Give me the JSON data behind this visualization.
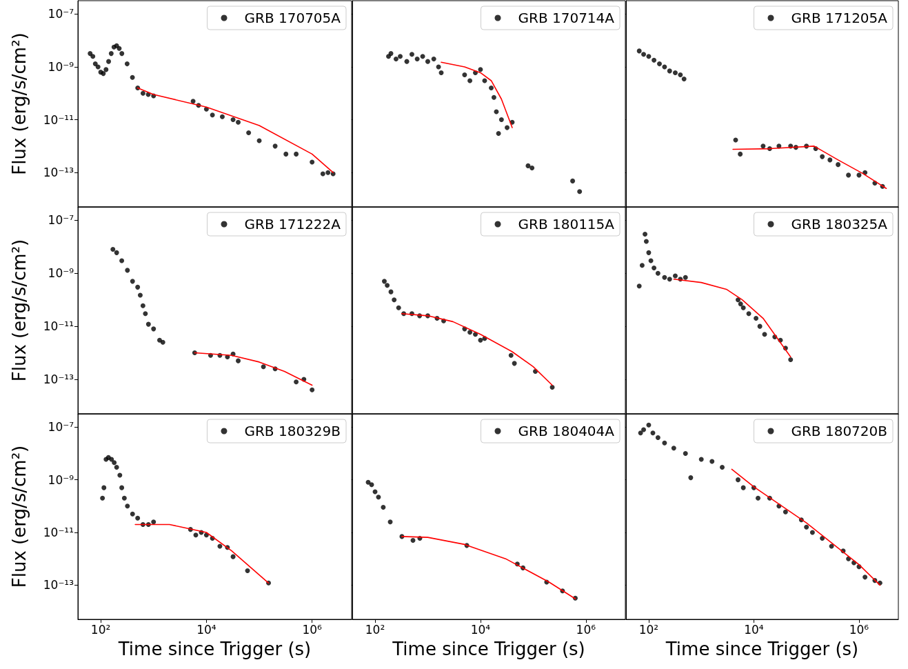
{
  "chart_data": [
    {
      "type": "scatter",
      "ylabel": "Flux (erg/s/cm²)",
      "tick_labels": "y",
      "log": "xy",
      "legend": "top right",
      "xlim": [
        37,
        5600000
      ],
      "ylim": [
        5e-15,
        3.2e-07
      ],
      "xticks": [
        {
          "value": 100,
          "label": null
        },
        {
          "value": 10000,
          "label": null
        },
        {
          "value": 1000000,
          "label": null
        }
      ],
      "yticks": [
        {
          "value": 1e-07,
          "label": "10⁻⁷"
        },
        {
          "value": 1e-09,
          "label": "10⁻⁹"
        },
        {
          "value": 1e-11,
          "label": "10⁻¹¹"
        },
        {
          "value": 1e-13,
          "label": "10⁻¹³"
        }
      ],
      "series": [
        {
          "name": "GRB 170705A",
          "type": "scatter",
          "marker": "circle",
          "color": "#000000",
          "x": [
            63,
            71,
            79,
            89,
            100,
            112,
            126,
            141,
            158,
            178,
            200,
            224,
            251,
            316,
            398,
            501,
            631,
            794,
            1000,
            5600,
            7100,
            10000,
            13000,
            20000,
            32000,
            40000,
            63000,
            100000,
            200000,
            320000,
            500000,
            1000000,
            1600000,
            2000000,
            2500000
          ],
          "values": [
            3.2e-09,
            2.5e-09,
            1.3e-09,
            1e-09,
            6.3e-10,
            5.6e-10,
            7.9e-10,
            1.6e-09,
            3.2e-09,
            5.6e-09,
            6.3e-09,
            5e-09,
            3.2e-09,
            1.3e-09,
            4e-10,
            1.6e-10,
            1e-10,
            9e-11,
            8e-11,
            5e-11,
            3.5e-11,
            2.5e-11,
            1.5e-11,
            1.3e-11,
            1e-11,
            8e-12,
            3.2e-12,
            1.6e-12,
            1e-12,
            5e-13,
            5e-13,
            2.5e-13,
            9e-14,
            1e-13,
            9e-14
          ]
        },
        {
          "type": "line",
          "marker": "none",
          "color": "#ff0000",
          "x": [
            500,
            1000,
            10000,
            100000,
            1000000,
            2500000
          ],
          "values": [
            1.6e-10,
            9e-11,
            3e-11,
            6e-12,
            5e-13,
            1e-13
          ]
        }
      ]
    },
    {
      "type": "scatter",
      "tick_labels": false,
      "log": "xy",
      "legend": "top right",
      "xlim": [
        37,
        5600000
      ],
      "ylim": [
        5e-15,
        3.2e-07
      ],
      "xticks": [
        {
          "value": 100,
          "label": null
        },
        {
          "value": 10000,
          "label": null
        },
        {
          "value": 1000000,
          "label": null
        }
      ],
      "yticks": [
        {
          "value": 1e-07,
          "label": null
        },
        {
          "value": 1e-09,
          "label": null
        },
        {
          "value": 1e-11,
          "label": null
        },
        {
          "value": 1e-13,
          "label": null
        }
      ],
      "series": [
        {
          "name": "GRB 170714A",
          "type": "scatter",
          "marker": "circle",
          "color": "#000000",
          "x": [
            180,
            200,
            250,
            300,
            400,
            500,
            630,
            800,
            1000,
            1300,
            1600,
            1800,
            5000,
            6300,
            8000,
            10000,
            12000,
            16000,
            18000,
            20000,
            22000,
            25000,
            32000,
            40000,
            80000,
            95000,
            560000,
            760000
          ],
          "values": [
            2.5e-09,
            3.2e-09,
            2e-09,
            2.5e-09,
            1.6e-09,
            3e-09,
            2e-09,
            2.5e-09,
            1.6e-09,
            2e-09,
            1e-09,
            6e-10,
            5e-10,
            3e-10,
            6e-10,
            8e-10,
            3e-10,
            1.6e-10,
            7e-11,
            2e-11,
            3e-12,
            1e-11,
            5e-12,
            8e-12,
            1.8e-13,
            1.5e-13,
            4.8e-14,
            1.9e-14
          ]
        },
        {
          "type": "line",
          "marker": "none",
          "color": "#ff0000",
          "x": [
            1800,
            5000,
            10000,
            16000,
            25000,
            40000
          ],
          "values": [
            1.5e-09,
            1e-09,
            6e-10,
            3e-10,
            6e-11,
            5e-12
          ]
        }
      ]
    },
    {
      "type": "scatter",
      "tick_labels": false,
      "log": "xy",
      "legend": "top right",
      "xlim": [
        37,
        5600000
      ],
      "ylim": [
        5e-15,
        3.2e-07
      ],
      "xticks": [
        {
          "value": 100,
          "label": null
        },
        {
          "value": 10000,
          "label": null
        },
        {
          "value": 1000000,
          "label": null
        }
      ],
      "yticks": [
        {
          "value": 1e-07,
          "label": null
        },
        {
          "value": 1e-09,
          "label": null
        },
        {
          "value": 1e-11,
          "label": null
        },
        {
          "value": 1e-13,
          "label": null
        }
      ],
      "series": [
        {
          "name": "GRB 171205A",
          "type": "scatter",
          "marker": "circle",
          "color": "#000000",
          "x": [
            66,
            80,
            100,
            126,
            160,
            200,
            250,
            320,
            400,
            470,
            4500,
            5500,
            15000,
            20000,
            30000,
            50000,
            63000,
            100000,
            150000,
            200000,
            280000,
            400000,
            630000,
            1000000,
            1300000,
            2000000,
            2800000
          ],
          "values": [
            4e-09,
            3e-09,
            2.5e-09,
            1.8e-09,
            1.3e-09,
            1e-09,
            7e-10,
            6e-10,
            5e-10,
            3.5e-10,
            1.7e-12,
            5e-13,
            1e-12,
            8e-13,
            1e-12,
            1e-12,
            9e-13,
            1e-12,
            8e-13,
            4e-13,
            3e-13,
            2e-13,
            8e-14,
            8e-14,
            1e-13,
            4e-14,
            3e-14
          ]
        },
        {
          "type": "line",
          "marker": "none",
          "color": "#ff0000",
          "x": [
            4000,
            20000,
            140000,
            400000,
            1200000,
            3300000
          ],
          "values": [
            7.6e-13,
            8e-13,
            1e-12,
            3e-13,
            9e-14,
            2.5e-14
          ]
        }
      ]
    },
    {
      "type": "scatter",
      "ylabel": "Flux (erg/s/cm²)",
      "tick_labels": "y",
      "log": "xy",
      "legend": "top right",
      "xlim": [
        37,
        5600000
      ],
      "ylim": [
        5e-15,
        3.2e-07
      ],
      "xticks": [
        {
          "value": 100,
          "label": null
        },
        {
          "value": 10000,
          "label": null
        },
        {
          "value": 1000000,
          "label": null
        }
      ],
      "yticks": [
        {
          "value": 1e-07,
          "label": "10⁻⁷"
        },
        {
          "value": 1e-09,
          "label": "10⁻⁹"
        },
        {
          "value": 1e-11,
          "label": "10⁻¹¹"
        },
        {
          "value": 1e-13,
          "label": "10⁻¹³"
        }
      ],
      "series": [
        {
          "name": "GRB 171222A",
          "type": "scatter",
          "marker": "circle",
          "color": "#000000",
          "x": [
            170,
            200,
            250,
            320,
            400,
            500,
            560,
            630,
            700,
            800,
            1000,
            1300,
            1500,
            6000,
            12000,
            18000,
            25000,
            32000,
            40000,
            120000,
            200000,
            500000,
            700000,
            1000000
          ],
          "values": [
            8e-09,
            6e-09,
            3e-09,
            1.3e-09,
            5e-10,
            3e-10,
            1.5e-10,
            6e-11,
            3e-11,
            1.2e-11,
            8e-12,
            3e-12,
            2.5e-12,
            1e-12,
            8e-13,
            8e-13,
            7e-13,
            9e-13,
            5e-13,
            3e-13,
            2.5e-13,
            8e-14,
            1e-13,
            4e-14
          ]
        },
        {
          "type": "line",
          "marker": "none",
          "color": "#ff0000",
          "x": [
            6000,
            30000,
            100000,
            300000,
            1000000
          ],
          "values": [
            1e-12,
            8e-13,
            4.5e-13,
            2e-13,
            6e-14
          ]
        }
      ]
    },
    {
      "type": "scatter",
      "tick_labels": false,
      "log": "xy",
      "legend": "top right",
      "xlim": [
        37,
        5600000
      ],
      "ylim": [
        5e-15,
        3.2e-07
      ],
      "xticks": [
        {
          "value": 100,
          "label": null
        },
        {
          "value": 10000,
          "label": null
        },
        {
          "value": 1000000,
          "label": null
        }
      ],
      "yticks": [
        {
          "value": 1e-07,
          "label": null
        },
        {
          "value": 1e-09,
          "label": null
        },
        {
          "value": 1e-11,
          "label": null
        },
        {
          "value": 1e-13,
          "label": null
        }
      ],
      "series": [
        {
          "name": "GRB 180115A",
          "type": "scatter",
          "marker": "circle",
          "color": "#000000",
          "x": [
            150,
            170,
            200,
            230,
            280,
            350,
            500,
            700,
            1000,
            1500,
            2000,
            5000,
            6300,
            8000,
            10000,
            12000,
            38000,
            44000,
            110000,
            230000
          ],
          "values": [
            5e-10,
            3.5e-10,
            2e-10,
            1e-10,
            5e-11,
            3e-11,
            3e-11,
            2.5e-11,
            2.5e-11,
            2e-11,
            1.6e-11,
            8e-12,
            6e-12,
            5e-12,
            3e-12,
            3.5e-12,
            8e-13,
            4e-13,
            2e-13,
            5e-14
          ]
        },
        {
          "type": "line",
          "marker": "none",
          "color": "#ff0000",
          "x": [
            320,
            1000,
            3000,
            10000,
            40000,
            100000,
            230000
          ],
          "values": [
            3e-11,
            2.5e-11,
            1.5e-11,
            5e-12,
            1.1e-12,
            3e-13,
            6e-14
          ]
        }
      ]
    },
    {
      "type": "scatter",
      "tick_labels": false,
      "log": "xy",
      "legend": "top right",
      "xlim": [
        37,
        5600000
      ],
      "ylim": [
        5e-15,
        3.2e-07
      ],
      "xticks": [
        {
          "value": 100,
          "label": null
        },
        {
          "value": 10000,
          "label": null
        },
        {
          "value": 1000000,
          "label": null
        }
      ],
      "yticks": [
        {
          "value": 1e-07,
          "label": null
        },
        {
          "value": 1e-09,
          "label": null
        },
        {
          "value": 1e-11,
          "label": null
        },
        {
          "value": 1e-13,
          "label": null
        }
      ],
      "series": [
        {
          "name": "GRB 180325A",
          "type": "scatter",
          "marker": "circle",
          "color": "#000000",
          "x": [
            66,
            75,
            85,
            90,
            100,
            110,
            126,
            150,
            200,
            250,
            320,
            400,
            500,
            5000,
            5600,
            6300,
            8000,
            11000,
            13000,
            16000,
            25000,
            32000,
            40000,
            50000
          ],
          "values": [
            3.3e-10,
            2e-09,
            3e-08,
            1.6e-08,
            6e-09,
            3e-09,
            1.6e-09,
            1e-09,
            7e-10,
            6e-10,
            8e-10,
            6e-10,
            7e-10,
            1e-10,
            7e-11,
            5e-11,
            3e-11,
            2e-11,
            1e-11,
            5e-12,
            4e-12,
            3e-12,
            1.5e-12,
            5.5e-13
          ]
        },
        {
          "type": "line",
          "marker": "none",
          "color": "#ff0000",
          "x": [
            300,
            1000,
            3000,
            6000,
            15000,
            50000
          ],
          "values": [
            6e-10,
            4.5e-10,
            2.5e-10,
            1e-10,
            2e-11,
            7e-13
          ]
        }
      ]
    },
    {
      "type": "scatter",
      "xlabel": "Time since Trigger (s)",
      "ylabel": "Flux (erg/s/cm²)",
      "log": "xy",
      "legend": "top right",
      "xlim": [
        37,
        5600000
      ],
      "ylim": [
        5e-15,
        3.2e-07
      ],
      "xticks": [
        {
          "value": 100,
          "label": "10²"
        },
        {
          "value": 10000,
          "label": "10⁴"
        },
        {
          "value": 1000000,
          "label": "10⁶"
        }
      ],
      "yticks": [
        {
          "value": 1e-07,
          "label": "10⁻⁷"
        },
        {
          "value": 1e-09,
          "label": "10⁻⁹"
        },
        {
          "value": 1e-11,
          "label": "10⁻¹¹"
        },
        {
          "value": 1e-13,
          "label": "10⁻¹³"
        }
      ],
      "series": [
        {
          "name": "GRB 180329B",
          "type": "scatter",
          "marker": "circle",
          "color": "#000000",
          "x": [
            108,
            115,
            126,
            140,
            160,
            180,
            200,
            230,
            250,
            280,
            320,
            400,
            500,
            630,
            800,
            1000,
            5000,
            6300,
            8000,
            10000,
            13000,
            18000,
            25000,
            32000,
            60000,
            150000
          ],
          "values": [
            2e-10,
            5e-10,
            6e-09,
            7e-09,
            6e-09,
            4.5e-09,
            3e-09,
            1.5e-09,
            5e-10,
            2e-10,
            1e-10,
            5e-11,
            3.5e-11,
            2e-11,
            2e-11,
            2.5e-11,
            1.3e-11,
            8e-12,
            1e-11,
            8e-12,
            6e-12,
            3e-12,
            2.7e-12,
            1.2e-12,
            3.5e-13,
            1.2e-13
          ]
        },
        {
          "type": "line",
          "marker": "none",
          "color": "#ff0000",
          "x": [
            450,
            2000,
            10000,
            30000,
            150000
          ],
          "values": [
            2e-11,
            2e-11,
            1e-11,
            2e-12,
            1.2e-13
          ]
        }
      ]
    },
    {
      "type": "scatter",
      "xlabel": "Time since Trigger (s)",
      "tick_labels": "x",
      "log": "xy",
      "legend": "top right",
      "xlim": [
        37,
        5600000
      ],
      "ylim": [
        5e-15,
        3.2e-07
      ],
      "xticks": [
        {
          "value": 100,
          "label": "10²"
        },
        {
          "value": 10000,
          "label": "10⁴"
        },
        {
          "value": 1000000,
          "label": "10⁶"
        }
      ],
      "yticks": [
        {
          "value": 1e-07,
          "label": null
        },
        {
          "value": 1e-09,
          "label": null
        },
        {
          "value": 1e-11,
          "label": null
        },
        {
          "value": 1e-13,
          "label": null
        }
      ],
      "series": [
        {
          "name": "GRB 180404A",
          "type": "scatter",
          "marker": "circle",
          "color": "#000000",
          "x": [
            74,
            86,
            100,
            116,
            143,
            194,
            323,
            524,
            707,
            5500,
            50000,
            64000,
            180000,
            360000,
            630000
          ],
          "values": [
            8e-10,
            6.5e-10,
            3.5e-10,
            2.2e-10,
            9e-11,
            2.5e-11,
            7e-12,
            5e-12,
            6e-12,
            3.2e-12,
            6.3e-13,
            4.5e-13,
            1.3e-13,
            6e-14,
            3.2e-14
          ]
        },
        {
          "type": "line",
          "marker": "none",
          "color": "#ff0000",
          "x": [
            323,
            1000,
            5000,
            30000,
            200000,
            630000
          ],
          "values": [
            7e-12,
            6.5e-12,
            3.5e-12,
            1e-12,
            1.3e-13,
            3e-14
          ]
        }
      ]
    },
    {
      "type": "scatter",
      "xlabel": "Time since Trigger (s)",
      "tick_labels": "x",
      "log": "xy",
      "legend": "top right",
      "xlim": [
        37,
        5600000
      ],
      "ylim": [
        5e-15,
        3.2e-07
      ],
      "xticks": [
        {
          "value": 100,
          "label": "10²"
        },
        {
          "value": 10000,
          "label": "10⁴"
        },
        {
          "value": 1000000,
          "label": "10⁶"
        }
      ],
      "yticks": [
        {
          "value": 1e-07,
          "label": null
        },
        {
          "value": 1e-09,
          "label": null
        },
        {
          "value": 1e-11,
          "label": null
        },
        {
          "value": 1e-13,
          "label": null
        }
      ],
      "series": [
        {
          "name": "GRB 180720B",
          "type": "scatter",
          "marker": "circle",
          "color": "#000000",
          "x": [
            70,
            80,
            100,
            120,
            150,
            200,
            300,
            500,
            630,
            1000,
            1600,
            2500,
            5000,
            6300,
            10000,
            12000,
            20000,
            30000,
            40000,
            80000,
            100000,
            130000,
            200000,
            300000,
            500000,
            630000,
            800000,
            1000000,
            1300000,
            2000000,
            2500000
          ],
          "values": [
            6e-08,
            8e-08,
            1.2e-07,
            6e-08,
            4e-08,
            2.5e-08,
            1.6e-08,
            1e-08,
            1.2e-09,
            6e-09,
            5e-09,
            3e-09,
            1e-09,
            5e-10,
            5e-10,
            2e-10,
            2e-10,
            1e-10,
            6e-11,
            3e-11,
            1.6e-11,
            1e-11,
            6e-12,
            3e-12,
            2e-12,
            1e-12,
            7e-13,
            5e-13,
            2e-13,
            1.5e-13,
            1.2e-13
          ]
        },
        {
          "type": "line",
          "marker": "none",
          "color": "#ff0000",
          "x": [
            3800,
            10000,
            100000,
            1000000,
            2500000
          ],
          "values": [
            2.5e-09,
            5.4e-10,
            2.3e-11,
            6e-13,
            1e-13
          ]
        }
      ]
    }
  ]
}
